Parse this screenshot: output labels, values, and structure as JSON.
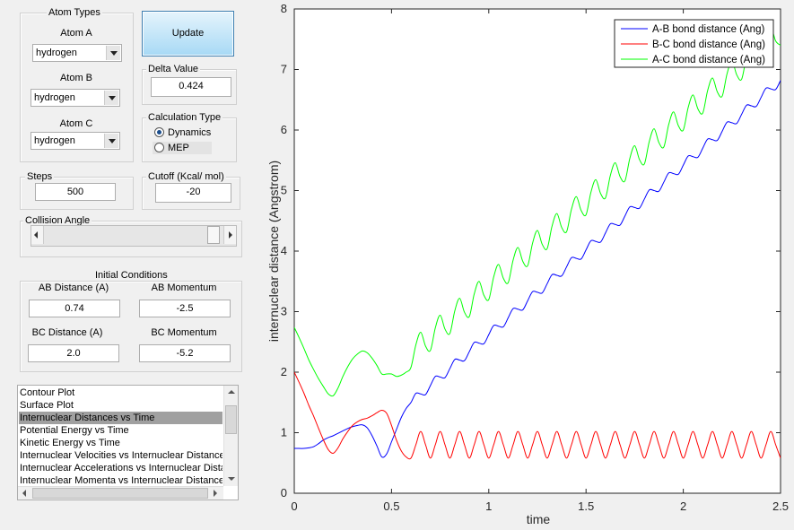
{
  "atom_types": {
    "title": "Atom Types",
    "atoms": [
      {
        "label": "Atom A",
        "value": "hydrogen"
      },
      {
        "label": "Atom B",
        "value": "hydrogen"
      },
      {
        "label": "Atom C",
        "value": "hydrogen"
      }
    ]
  },
  "update_button": "Update",
  "delta_value": {
    "label": "Delta Value",
    "value": "0.424"
  },
  "calculation_type": {
    "title": "Calculation Type",
    "options": [
      "Dynamics",
      "MEP"
    ],
    "selected": 0
  },
  "steps": {
    "label": "Steps",
    "value": "500"
  },
  "cutoff": {
    "label": "Cutoff (Kcal/ mol)",
    "value": "-20"
  },
  "collision_angle": {
    "label": "Collision Angle"
  },
  "initial_conditions": {
    "title": "Initial Conditions",
    "fields": [
      {
        "label": "AB Distance (A)",
        "value": "0.74"
      },
      {
        "label": "AB Momentum",
        "value": "-2.5"
      },
      {
        "label": "BC Distance (A)",
        "value": "2.0"
      },
      {
        "label": "BC Momentum",
        "value": "-5.2"
      }
    ]
  },
  "plot_list": {
    "items": [
      "Contour Plot",
      "Surface Plot",
      "Internuclear Distances vs Time",
      "Potential Energy vs Time",
      "Kinetic Energy vs Time",
      "Internuclear Velocities vs Internuclear Distance",
      "Internuclear Accelerations vs Internuclear Dista",
      "Internuclear Momenta vs Internuclear Distance"
    ],
    "selected": 2
  },
  "chart_data": {
    "type": "line",
    "x_label": "time",
    "y_label": "internuclear distance (Angstrom)",
    "xlim": [
      0,
      2.5
    ],
    "xticks": [
      0,
      0.5,
      1,
      1.5,
      2,
      2.5
    ],
    "ylim": [
      0,
      8
    ],
    "yticks": [
      0,
      1,
      2,
      3,
      4,
      5,
      6,
      7,
      8
    ],
    "grid": false,
    "legend": "upper right",
    "x": [
      0,
      0.025,
      0.05,
      0.075,
      0.1,
      0.125,
      0.15,
      0.175,
      0.2,
      0.225,
      0.25,
      0.275,
      0.3,
      0.325,
      0.35,
      0.375,
      0.4,
      0.425,
      0.45,
      0.475,
      0.5,
      0.525,
      0.55,
      0.575,
      0.6,
      0.625,
      0.65,
      0.675,
      0.7,
      0.725,
      0.75,
      0.775,
      0.8,
      0.825,
      0.85,
      0.875,
      0.9,
      0.925,
      0.95,
      0.975,
      1.0,
      1.025,
      1.05,
      1.075,
      1.1,
      1.125,
      1.15,
      1.175,
      1.2,
      1.225,
      1.25,
      1.275,
      1.3,
      1.325,
      1.35,
      1.375,
      1.4,
      1.425,
      1.45,
      1.475,
      1.5,
      1.525,
      1.55,
      1.575,
      1.6,
      1.625,
      1.65,
      1.675,
      1.7,
      1.725,
      1.75,
      1.775,
      1.8,
      1.825,
      1.85,
      1.875,
      1.9,
      1.925,
      1.95,
      1.975,
      2.0,
      2.025,
      2.05,
      2.075,
      2.1,
      2.125,
      2.15,
      2.175,
      2.2,
      2.225,
      2.25,
      2.275,
      2.3,
      2.325,
      2.35,
      2.375,
      2.4,
      2.425,
      2.45,
      2.475,
      2.5
    ],
    "series": [
      {
        "name": "A-B bond distance (Ang)",
        "color": "#0000ff",
        "values": [
          0.74,
          0.74,
          0.74,
          0.75,
          0.77,
          0.82,
          0.88,
          0.92,
          0.95,
          0.99,
          1.03,
          1.07,
          1.1,
          1.12,
          1.13,
          1.08,
          0.95,
          0.78,
          0.6,
          0.65,
          0.85,
          1.05,
          1.25,
          1.4,
          1.5,
          1.65,
          1.64,
          1.63,
          1.78,
          1.93,
          1.92,
          1.91,
          2.06,
          2.21,
          2.2,
          2.19,
          2.34,
          2.49,
          2.48,
          2.47,
          2.62,
          2.77,
          2.76,
          2.75,
          2.9,
          3.05,
          3.04,
          3.03,
          3.18,
          3.33,
          3.32,
          3.31,
          3.46,
          3.61,
          3.6,
          3.59,
          3.74,
          3.89,
          3.88,
          3.87,
          4.02,
          4.17,
          4.16,
          4.15,
          4.3,
          4.45,
          4.44,
          4.43,
          4.58,
          4.73,
          4.72,
          4.71,
          4.86,
          5.01,
          5.0,
          4.99,
          5.14,
          5.29,
          5.28,
          5.27,
          5.42,
          5.57,
          5.56,
          5.55,
          5.7,
          5.85,
          5.84,
          5.83,
          5.98,
          6.13,
          6.12,
          6.11,
          6.26,
          6.41,
          6.4,
          6.39,
          6.54,
          6.69,
          6.68,
          6.67,
          6.82
        ]
      },
      {
        "name": "B-C bond distance (Ang)",
        "color": "#ff0000",
        "values": [
          2.0,
          1.83,
          1.65,
          1.45,
          1.27,
          1.07,
          0.88,
          0.72,
          0.66,
          0.75,
          0.9,
          1.02,
          1.12,
          1.18,
          1.22,
          1.24,
          1.28,
          1.33,
          1.37,
          1.32,
          1.12,
          0.88,
          0.7,
          0.6,
          0.58,
          0.8,
          1.02,
          0.8,
          0.58,
          0.8,
          1.02,
          0.8,
          0.58,
          0.8,
          1.02,
          0.8,
          0.58,
          0.8,
          1.02,
          0.8,
          0.58,
          0.8,
          1.02,
          0.8,
          0.58,
          0.8,
          1.02,
          0.8,
          0.58,
          0.8,
          1.02,
          0.8,
          0.58,
          0.8,
          1.02,
          0.8,
          0.58,
          0.8,
          1.02,
          0.8,
          0.58,
          0.8,
          1.02,
          0.8,
          0.58,
          0.8,
          1.02,
          0.8,
          0.58,
          0.8,
          1.02,
          0.8,
          0.58,
          0.8,
          1.02,
          0.8,
          0.58,
          0.8,
          1.02,
          0.8,
          0.58,
          0.8,
          1.02,
          0.8,
          0.58,
          0.8,
          1.02,
          0.8,
          0.58,
          0.8,
          1.02,
          0.8,
          0.58,
          0.8,
          1.02,
          0.8,
          0.58,
          0.8,
          1.02,
          0.8,
          0.58
        ]
      },
      {
        "name": "A-C bond distance (Ang)",
        "color": "#00ff00",
        "values": [
          2.74,
          2.57,
          2.39,
          2.2,
          2.04,
          1.89,
          1.76,
          1.64,
          1.61,
          1.74,
          1.93,
          2.09,
          2.22,
          2.3,
          2.35,
          2.32,
          2.23,
          2.11,
          1.97,
          1.97,
          1.97,
          1.93,
          1.95,
          2.0,
          2.08,
          2.45,
          2.66,
          2.43,
          2.36,
          2.73,
          2.94,
          2.71,
          2.64,
          3.01,
          3.22,
          2.99,
          2.92,
          3.29,
          3.5,
          3.27,
          3.2,
          3.57,
          3.78,
          3.55,
          3.48,
          3.85,
          4.06,
          3.83,
          3.76,
          4.13,
          4.34,
          4.11,
          4.04,
          4.41,
          4.62,
          4.39,
          4.32,
          4.69,
          4.9,
          4.67,
          4.6,
          4.97,
          5.18,
          4.95,
          4.88,
          5.25,
          5.46,
          5.23,
          5.16,
          5.53,
          5.74,
          5.51,
          5.44,
          5.81,
          6.02,
          5.79,
          5.72,
          6.09,
          6.3,
          6.07,
          6.0,
          6.37,
          6.58,
          6.35,
          6.28,
          6.65,
          6.86,
          6.63,
          6.56,
          6.93,
          7.14,
          6.91,
          6.84,
          7.21,
          7.42,
          7.19,
          7.12,
          7.49,
          7.7,
          7.47,
          7.4
        ]
      }
    ]
  }
}
